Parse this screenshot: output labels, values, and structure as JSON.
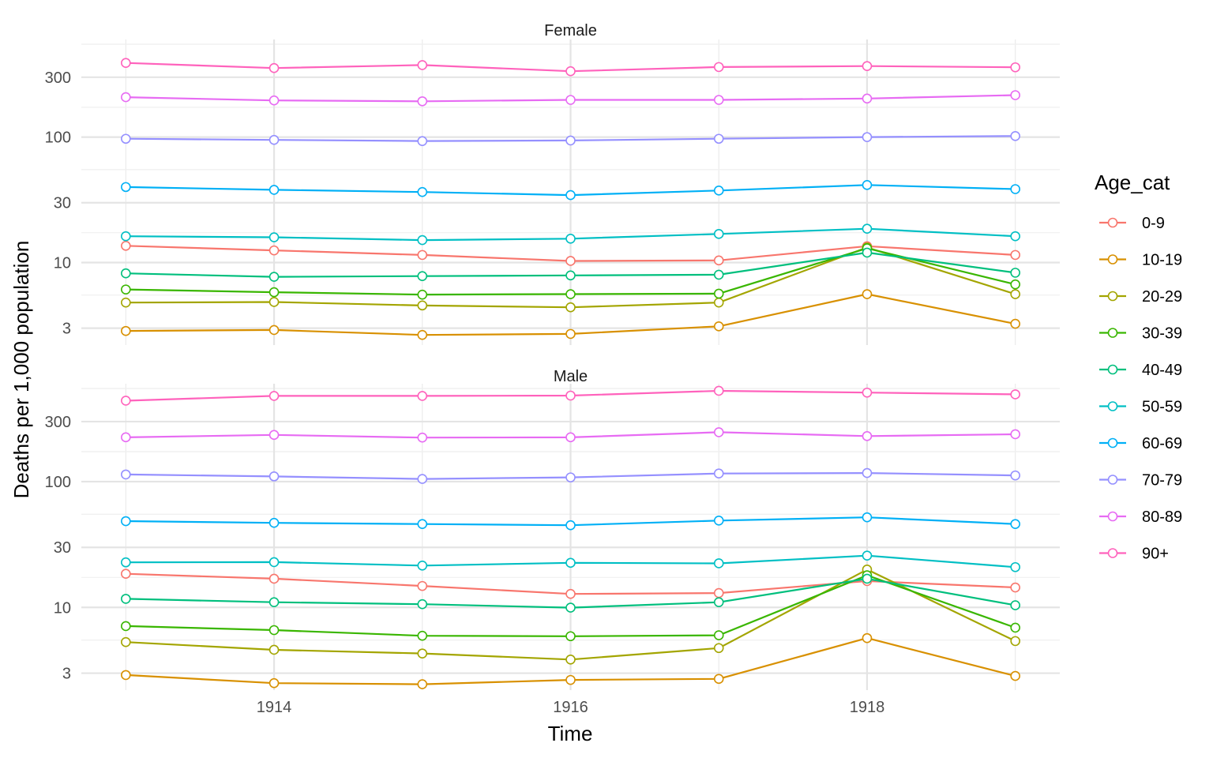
{
  "chart_data": {
    "type": "line",
    "xlabel": "Time",
    "ylabel": "Deaths per 1,000 population",
    "y_scale": "log10",
    "ylim": [
      2.2,
      600
    ],
    "x": [
      1913,
      1914,
      1915,
      1916,
      1917,
      1918,
      1919
    ],
    "x_ticks": [
      1914,
      1916,
      1918
    ],
    "y_ticks": [
      3,
      10,
      30,
      100,
      300
    ],
    "grid": true,
    "legend": {
      "title": "Age_cat",
      "placement": "right"
    },
    "series_colors": {
      "0-9": "#F8766D",
      "10-19": "#D89000",
      "20-29": "#A3A500",
      "30-39": "#39B600",
      "40-49": "#00BF7D",
      "50-59": "#00BFC4",
      "60-69": "#00B0F6",
      "70-79": "#9590FF",
      "80-89": "#E76BF3",
      "90+": "#FF62BC"
    },
    "legend_order": [
      "0-9",
      "10-19",
      "20-29",
      "30-39",
      "40-49",
      "50-59",
      "60-69",
      "70-79",
      "80-89",
      "90+"
    ],
    "panels": [
      {
        "label": "Female",
        "series": [
          {
            "name": "0-9",
            "values": [
              13.6,
              12.5,
              11.5,
              10.3,
              10.4,
              13.5,
              11.5
            ]
          },
          {
            "name": "10-19",
            "values": [
              2.85,
              2.9,
              2.65,
              2.7,
              3.1,
              5.6,
              3.25
            ]
          },
          {
            "name": "20-29",
            "values": [
              4.8,
              4.85,
              4.55,
              4.4,
              4.8,
              13.2,
              5.6
            ]
          },
          {
            "name": "30-39",
            "values": [
              6.1,
              5.8,
              5.55,
              5.6,
              5.65,
              13.0,
              6.7
            ]
          },
          {
            "name": "40-49",
            "values": [
              8.2,
              7.7,
              7.8,
              7.9,
              8.0,
              12.0,
              8.3
            ]
          },
          {
            "name": "50-59",
            "values": [
              16.2,
              15.9,
              15.1,
              15.5,
              16.9,
              18.6,
              16.2
            ]
          },
          {
            "name": "60-69",
            "values": [
              40,
              38,
              36.5,
              34.5,
              37.5,
              41.5,
              38.5
            ]
          },
          {
            "name": "70-79",
            "values": [
              97,
              95,
              93,
              94,
              97,
              100,
              102
            ]
          },
          {
            "name": "80-89",
            "values": [
              208,
              196,
              193,
              198,
              198,
              203,
              216
            ]
          },
          {
            "name": "90+",
            "values": [
              390,
              355,
              375,
              335,
              362,
              368,
              360
            ]
          }
        ]
      },
      {
        "label": "Male",
        "series": [
          {
            "name": "0-9",
            "values": [
              18.5,
              16.9,
              14.8,
              12.8,
              13.0,
              16.2,
              14.4
            ]
          },
          {
            "name": "10-19",
            "values": [
              2.9,
              2.5,
              2.45,
              2.65,
              2.7,
              5.7,
              2.85
            ]
          },
          {
            "name": "20-29",
            "values": [
              5.3,
              4.6,
              4.3,
              3.85,
              4.75,
              20.0,
              5.4
            ]
          },
          {
            "name": "30-39",
            "values": [
              7.1,
              6.6,
              5.95,
              5.9,
              6.0,
              18.0,
              6.9
            ]
          },
          {
            "name": "40-49",
            "values": [
              11.7,
              11.0,
              10.6,
              9.95,
              11.0,
              16.9,
              10.4
            ]
          },
          {
            "name": "50-59",
            "values": [
              22.8,
              22.9,
              21.5,
              22.6,
              22.4,
              25.8,
              20.9
            ]
          },
          {
            "name": "60-69",
            "values": [
              48.5,
              47.0,
              46.0,
              45.0,
              49.0,
              52.0,
              46.0
            ]
          },
          {
            "name": "70-79",
            "values": [
              114,
              110,
              105,
              108,
              116,
              117,
              112
            ]
          },
          {
            "name": "80-89",
            "values": [
              225,
              235,
              224,
              225,
              247,
              230,
              238
            ]
          },
          {
            "name": "90+",
            "values": [
              440,
              480,
              480,
              483,
              527,
              510,
              494
            ]
          }
        ]
      }
    ]
  }
}
